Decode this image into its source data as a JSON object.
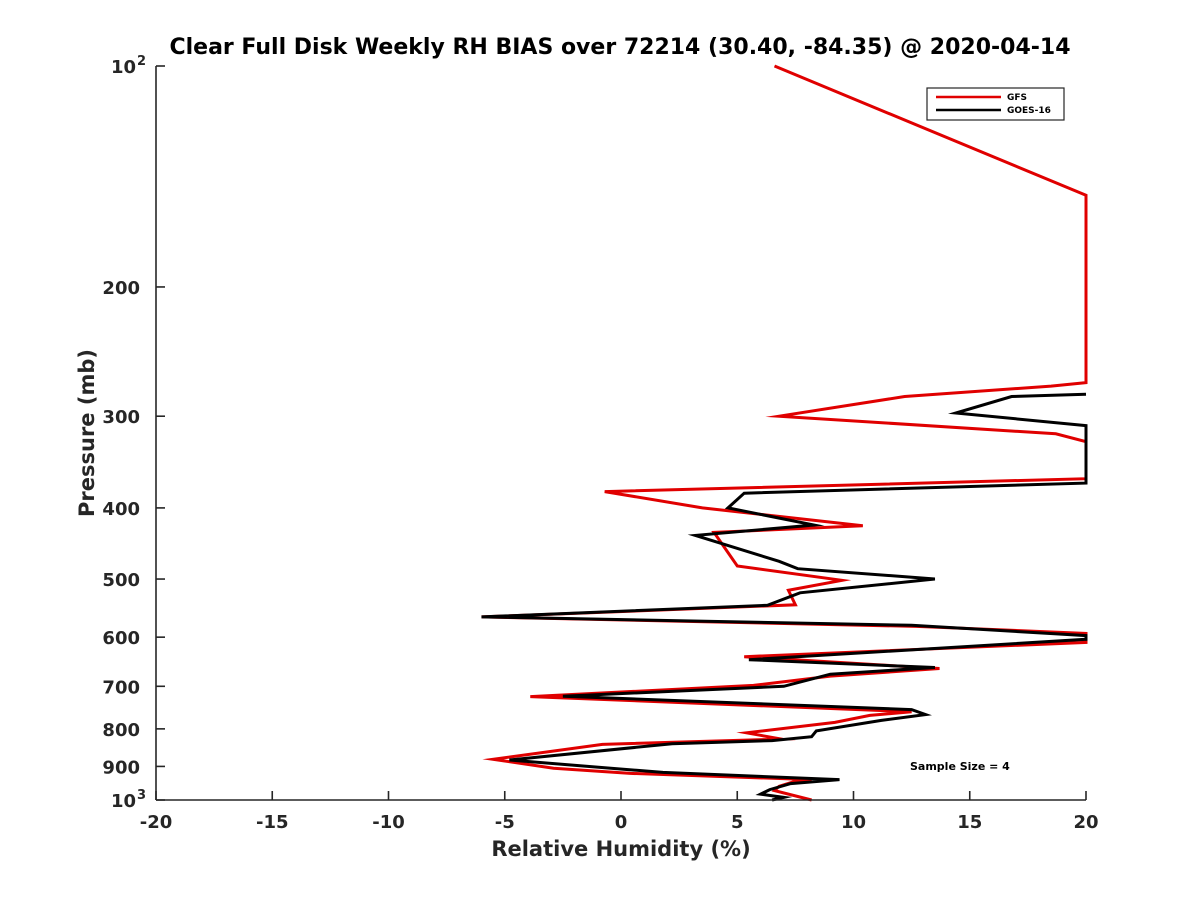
{
  "chart_data": {
    "type": "line",
    "title": "Clear Full Disk Weekly RH BIAS over 72214 (30.40, -84.35) @ 2020-04-14",
    "xlabel": "Relative Humidity (%)",
    "ylabel": "Pressure (mb)",
    "xlim": [
      -20,
      20
    ],
    "ylim": [
      100,
      1000
    ],
    "yscale": "log",
    "y_reversed": true,
    "grid": false,
    "x_ticks": [
      -20,
      -15,
      -10,
      -5,
      0,
      5,
      10,
      15,
      20
    ],
    "x_tick_labels": [
      "-20",
      "-15",
      "-10",
      "-5",
      "0",
      "5",
      "10",
      "15",
      "20"
    ],
    "y_ticks": [
      100,
      200,
      300,
      400,
      500,
      600,
      700,
      800,
      900,
      1000
    ],
    "y_tick_labels": [
      {
        "base": "10",
        "exp": "2"
      },
      {
        "base": "200",
        "exp": ""
      },
      {
        "base": "300",
        "exp": ""
      },
      {
        "base": "400",
        "exp": ""
      },
      {
        "base": "500",
        "exp": ""
      },
      {
        "base": "600",
        "exp": ""
      },
      {
        "base": "700",
        "exp": ""
      },
      {
        "base": "800",
        "exp": ""
      },
      {
        "base": "900",
        "exp": ""
      },
      {
        "base": "10",
        "exp": "3"
      }
    ],
    "legend_position": "top-right",
    "annotation": "Sample Size = 4",
    "series": [
      {
        "name": "GFS",
        "color": "#e00000",
        "points": [
          [
            6.6,
            100
          ],
          [
            20,
            150
          ],
          [
            20,
            270
          ],
          [
            18.5,
            273
          ],
          [
            12.2,
            282
          ],
          [
            6.8,
            300
          ],
          [
            18.7,
            317
          ],
          [
            20,
            325
          ],
          [
            20,
            365
          ],
          [
            -0.7,
            380
          ],
          [
            3.5,
            400
          ],
          [
            10.4,
            423
          ],
          [
            4,
            432
          ],
          [
            5,
            480
          ],
          [
            9.5,
            502
          ],
          [
            7.2,
            518
          ],
          [
            7.5,
            542
          ],
          [
            -6,
            563
          ],
          [
            12.7,
            580
          ],
          [
            20,
            593
          ],
          [
            20,
            610
          ],
          [
            5.3,
            638
          ],
          [
            13.7,
            662
          ],
          [
            9,
            678
          ],
          [
            5.7,
            698
          ],
          [
            -3.9,
            723
          ],
          [
            12.5,
            758
          ],
          [
            10.7,
            767
          ],
          [
            9.2,
            784
          ],
          [
            5.4,
            810
          ],
          [
            6.9,
            826
          ],
          [
            -0.8,
            840
          ],
          [
            -5.5,
            880
          ],
          [
            -2.9,
            905
          ],
          [
            0.4,
            920
          ],
          [
            8.2,
            938
          ],
          [
            7.4,
            945
          ],
          [
            6.8,
            958
          ],
          [
            6.6,
            971
          ],
          [
            8.2,
            1000
          ]
        ]
      },
      {
        "name": "GOES-16",
        "color": "#000000",
        "points": [
          [
            20,
            280
          ],
          [
            16.8,
            282
          ],
          [
            14.4,
            297
          ],
          [
            20,
            309
          ],
          [
            20,
            370
          ],
          [
            5.3,
            382
          ],
          [
            4.6,
            400
          ],
          [
            8.3,
            422
          ],
          [
            3.2,
            436
          ],
          [
            6.8,
            473
          ],
          [
            7.6,
            484
          ],
          [
            13.5,
            500
          ],
          [
            7.7,
            522
          ],
          [
            6.3,
            543
          ],
          [
            -6,
            563
          ],
          [
            12.5,
            578
          ],
          [
            20,
            597
          ],
          [
            20,
            604
          ],
          [
            5.5,
            644
          ],
          [
            13.5,
            660
          ],
          [
            9,
            674
          ],
          [
            7,
            700
          ],
          [
            -2.5,
            722
          ],
          [
            12.5,
            753
          ],
          [
            13.1,
            765
          ],
          [
            11.2,
            779
          ],
          [
            8.4,
            805
          ],
          [
            8.2,
            820
          ],
          [
            6.5,
            830
          ],
          [
            2.2,
            838
          ],
          [
            -4.8,
            882
          ],
          [
            -0.3,
            906
          ],
          [
            1.8,
            917
          ],
          [
            9.4,
            938
          ],
          [
            7.3,
            950
          ],
          [
            6.4,
            968
          ],
          [
            6,
            982
          ],
          [
            7,
            992
          ],
          [
            6.5,
            1000
          ]
        ]
      }
    ]
  }
}
